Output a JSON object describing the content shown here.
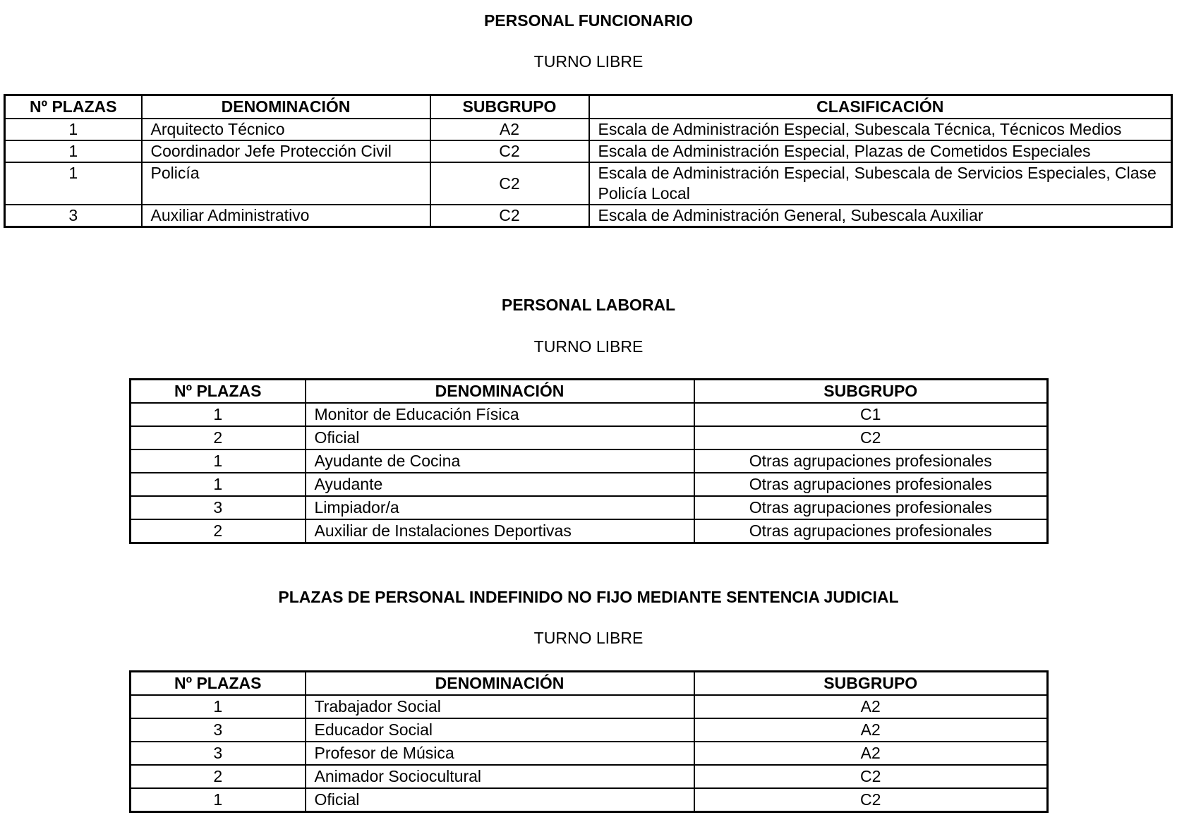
{
  "section1": {
    "title": "PERSONAL FUNCIONARIO",
    "subtitle": "TURNO LIBRE",
    "headers": [
      "Nº PLAZAS",
      "DENOMINACIÓN",
      "SUBGRUPO",
      "CLASIFICACIÓN"
    ],
    "rows": [
      [
        "1",
        "Arquitecto Técnico",
        "A2",
        "Escala de Administración Especial, Subescala Técnica, Técnicos Medios"
      ],
      [
        "1",
        "Coordinador Jefe Protección Civil",
        "C2",
        "Escala de Administración Especial, Plazas de Cometidos Especiales"
      ],
      [
        "1",
        "Policía",
        "C2",
        "Escala de Administración Especial, Subescala de Servicios Especiales, Clase Policía Local"
      ],
      [
        "3",
        "Auxiliar Administrativo",
        "C2",
        "Escala de Administración General, Subescala Auxiliar"
      ]
    ]
  },
  "section2": {
    "title": "PERSONAL LABORAL",
    "subtitle": "TURNO LIBRE",
    "headers": [
      "Nº PLAZAS",
      "DENOMINACIÓN",
      "SUBGRUPO"
    ],
    "rows": [
      [
        "1",
        "Monitor de Educación Física",
        "C1"
      ],
      [
        "2",
        "Oficial",
        "C2"
      ],
      [
        "1",
        "Ayudante de Cocina",
        "Otras agrupaciones profesionales"
      ],
      [
        "1",
        "Ayudante",
        "Otras agrupaciones profesionales"
      ],
      [
        "3",
        "Limpiador/a",
        "Otras agrupaciones profesionales"
      ],
      [
        "2",
        "Auxiliar de Instalaciones Deportivas",
        "Otras agrupaciones profesionales"
      ]
    ]
  },
  "section3": {
    "title": "PLAZAS DE PERSONAL INDEFINIDO NO FIJO MEDIANTE SENTENCIA JUDICIAL",
    "subtitle": "TURNO LIBRE",
    "headers": [
      "Nº PLAZAS",
      "DENOMINACIÓN",
      "SUBGRUPO"
    ],
    "rows": [
      [
        "1",
        "Trabajador Social",
        "A2"
      ],
      [
        "3",
        "Educador Social",
        "A2"
      ],
      [
        "3",
        "Profesor de Música",
        "A2"
      ],
      [
        "2",
        "Animador Sociocultural",
        "C2"
      ],
      [
        "1",
        "Oficial",
        "C2"
      ]
    ]
  }
}
